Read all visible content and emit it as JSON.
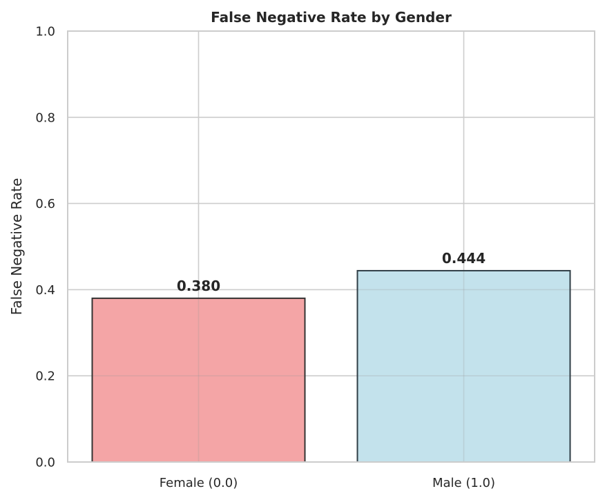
{
  "chart_data": {
    "type": "bar",
    "title": "False Negative Rate by Gender",
    "xlabel": "",
    "ylabel": "False Negative Rate",
    "categories": [
      "Female (0.0)",
      "Male (1.0)"
    ],
    "values": [
      0.38,
      0.444
    ],
    "value_labels": [
      "0.380",
      "0.444"
    ],
    "ylim": [
      0,
      1.0
    ],
    "yticks": [
      0.0,
      0.2,
      0.4,
      0.6,
      0.8,
      1.0
    ],
    "ytick_labels": [
      "0.0",
      "0.2",
      "0.4",
      "0.6",
      "0.8",
      "1.0"
    ],
    "grid": true,
    "bar_colors": [
      "#f4a5a6",
      "#c3e2ec"
    ],
    "bar_edge_colors": [
      "#333333",
      "#2f3d45"
    ]
  }
}
